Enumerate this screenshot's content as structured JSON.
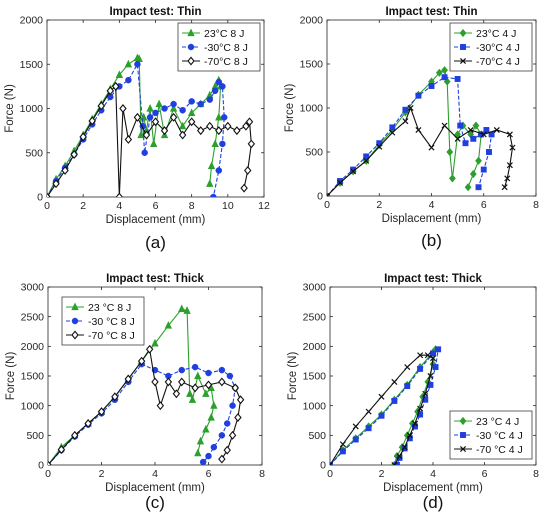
{
  "chart_data": [
    {
      "type": "line",
      "panel_label": "(a)",
      "title": "Impact test: Thin",
      "xlabel": "Displacement (mm)",
      "ylabel": "Force (N)",
      "xlim": [
        0,
        12
      ],
      "ylim": [
        0,
        2000
      ],
      "xticks": [
        0,
        2,
        4,
        6,
        8,
        10,
        12
      ],
      "yticks": [
        0,
        500,
        1000,
        1500,
        2000
      ],
      "legend_position": "top-right",
      "series": [
        {
          "name": "23°C 8 J",
          "color": "#2ca02c",
          "marker": "triangle",
          "dash": "solid",
          "x": [
            0,
            0.5,
            1,
            1.5,
            2,
            2.5,
            3,
            3.5,
            4,
            4.5,
            5,
            5.1,
            5.2,
            5.35,
            5.5,
            5.7,
            5.9,
            6.2,
            6.5,
            7,
            7.5,
            8,
            8.5,
            9,
            9.3,
            9.5,
            9.6,
            9.5,
            9.3,
            9.1,
            9.0
          ],
          "y": [
            0,
            200,
            350,
            520,
            700,
            880,
            1050,
            1220,
            1380,
            1500,
            1570,
            1560,
            700,
            900,
            750,
            1000,
            600,
            1050,
            700,
            1000,
            800,
            950,
            1050,
            1150,
            1250,
            1320,
            1250,
            900,
            600,
            350,
            150
          ]
        },
        {
          "name": "-30°C 8 J",
          "color": "#1f3fe0",
          "marker": "circle",
          "dash": "dashed",
          "x": [
            0,
            0.5,
            1,
            1.5,
            2,
            2.5,
            3,
            3.5,
            4,
            4.5,
            5.0,
            5.3,
            5.4,
            5.7,
            6,
            6.5,
            7,
            7.5,
            8,
            8.5,
            9,
            9.3,
            9.5,
            9.7,
            9.8,
            9.7,
            9.5,
            9.2
          ],
          "y": [
            0,
            180,
            330,
            480,
            650,
            820,
            980,
            1130,
            1250,
            1320,
            1500,
            800,
            500,
            900,
            950,
            1000,
            1050,
            980,
            1080,
            1050,
            1100,
            1200,
            1300,
            1250,
            900,
            600,
            300,
            0
          ]
        },
        {
          "name": "-70°C 8 J",
          "color": "#111111",
          "marker": "diamond",
          "dash": "solid",
          "x": [
            0,
            0.5,
            1,
            1.5,
            2,
            2.5,
            3,
            3.5,
            3.8,
            4.0,
            4.2,
            4.5,
            5,
            5.5,
            6,
            6.5,
            7,
            7.5,
            8,
            8.5,
            9,
            9.5,
            10,
            10.5,
            11,
            11.2,
            11.3,
            11.1,
            10.9
          ],
          "y": [
            0,
            150,
            300,
            480,
            680,
            860,
            1030,
            1200,
            1250,
            0,
            1000,
            650,
            900,
            700,
            850,
            750,
            900,
            700,
            850,
            750,
            800,
            750,
            800,
            750,
            800,
            850,
            600,
            300,
            100
          ]
        }
      ]
    },
    {
      "type": "line",
      "panel_label": "(b)",
      "title": "Impact test: Thin",
      "xlabel": "Displacement (mm)",
      "ylabel": "Force (N)",
      "xlim": [
        0,
        8
      ],
      "ylim": [
        0,
        2000
      ],
      "xticks": [
        0,
        2,
        4,
        6,
        8
      ],
      "yticks": [
        0,
        500,
        1000,
        1500,
        2000
      ],
      "legend_position": "top-right",
      "series": [
        {
          "name": "23°C 4 J",
          "color": "#2ca02c",
          "marker": "diamond-filled",
          "dash": "solid",
          "x": [
            0,
            0.5,
            1,
            1.5,
            2,
            2.5,
            3,
            3.5,
            4,
            4.3,
            4.5,
            4.6,
            4.7,
            4.8,
            5,
            5.2,
            5.5,
            5.7,
            5.9,
            5.8,
            5.6,
            5.4
          ],
          "y": [
            0,
            150,
            280,
            400,
            580,
            750,
            950,
            1150,
            1300,
            1400,
            1430,
            1300,
            500,
            200,
            700,
            800,
            700,
            800,
            700,
            400,
            250,
            100
          ]
        },
        {
          "name": "-30°C 4 J",
          "color": "#1f3fe0",
          "marker": "square",
          "dash": "dashed",
          "x": [
            0,
            0.5,
            1,
            1.5,
            2,
            2.5,
            3,
            3.5,
            4,
            4.5,
            5,
            5.1,
            5.3,
            5.6,
            5.9,
            6.1,
            6.3,
            6.2,
            6.0,
            5.8
          ],
          "y": [
            0,
            170,
            300,
            450,
            600,
            780,
            980,
            1140,
            1250,
            1350,
            1330,
            800,
            600,
            650,
            700,
            750,
            700,
            500,
            300,
            100
          ]
        },
        {
          "name": "-70°C 4 J",
          "color": "#111111",
          "marker": "x",
          "dash": "solid",
          "x": [
            0,
            0.5,
            1,
            1.5,
            2,
            2.5,
            3,
            3.2,
            3.5,
            4,
            4.5,
            5,
            5.5,
            6,
            6.5,
            7.0,
            7.1,
            7.0,
            6.9,
            6.8
          ],
          "y": [
            0,
            150,
            280,
            400,
            560,
            720,
            850,
            1000,
            750,
            550,
            800,
            650,
            750,
            700,
            750,
            700,
            550,
            350,
            200,
            100
          ]
        }
      ]
    },
    {
      "type": "line",
      "panel_label": "(c)",
      "title": "Impact test: Thick",
      "xlabel": "Displacement (mm)",
      "ylabel": "Force (N)",
      "xlim": [
        0,
        8
      ],
      "ylim": [
        0,
        3000
      ],
      "xticks": [
        0,
        2,
        4,
        6,
        8
      ],
      "yticks": [
        0,
        500,
        1000,
        1500,
        2000,
        2500,
        3000
      ],
      "legend_position": "top-left",
      "series": [
        {
          "name": "23 °C 8 J",
          "color": "#2ca02c",
          "marker": "triangle",
          "dash": "solid",
          "x": [
            0,
            0.5,
            1,
            1.5,
            2,
            2.5,
            3,
            3.5,
            4,
            4.5,
            5,
            5.2,
            5.3,
            5.4,
            5.6,
            5.9,
            6.1,
            6.2,
            6.1,
            5.9,
            5.7,
            5.6
          ],
          "y": [
            0,
            300,
            500,
            700,
            900,
            1150,
            1450,
            1750,
            2050,
            2350,
            2630,
            2600,
            1200,
            1100,
            1500,
            1200,
            1300,
            1000,
            800,
            600,
            400,
            200
          ]
        },
        {
          "name": "-30 °C 8 J",
          "color": "#1f3fe0",
          "marker": "circle",
          "dash": "dashed",
          "x": [
            0,
            0.5,
            1,
            1.5,
            2,
            2.5,
            3,
            3.5,
            4,
            4.5,
            5,
            5.5,
            6,
            6.5,
            6.8,
            7.0,
            6.9,
            6.7,
            6.5,
            6.2,
            6.0,
            5.8
          ],
          "y": [
            0,
            250,
            480,
            680,
            870,
            1100,
            1400,
            1700,
            1600,
            1500,
            1600,
            1650,
            1550,
            1600,
            1500,
            1300,
            1000,
            700,
            500,
            300,
            150,
            50
          ]
        },
        {
          "name": "-70 °C 8 J",
          "color": "#111111",
          "marker": "diamond",
          "dash": "solid",
          "x": [
            0,
            0.5,
            1,
            1.5,
            2,
            2.5,
            3,
            3.5,
            3.8,
            4.0,
            4.2,
            4.5,
            4.8,
            5,
            5.5,
            6,
            6.5,
            7.0,
            7.2,
            7.1,
            6.9,
            6.7,
            6.5
          ],
          "y": [
            0,
            260,
            500,
            700,
            900,
            1150,
            1450,
            1750,
            1950,
            1400,
            1000,
            1400,
            1200,
            1400,
            1300,
            1350,
            1400,
            1300,
            1100,
            800,
            500,
            250,
            100
          ]
        }
      ]
    },
    {
      "type": "line",
      "panel_label": "(d)",
      "title": "Impact test: Thick",
      "xlabel": "Displacement (mm)",
      "ylabel": "Force (N)",
      "xlim": [
        0,
        8
      ],
      "ylim": [
        0,
        3000
      ],
      "xticks": [
        0,
        2,
        4,
        6,
        8
      ],
      "yticks": [
        0,
        500,
        1000,
        1500,
        2000,
        2500,
        3000
      ],
      "legend_position": "bottom-right",
      "series": [
        {
          "name": "23 °C 4 J",
          "color": "#2ca02c",
          "marker": "diamond-filled",
          "dash": "solid",
          "x": [
            0,
            0.5,
            1,
            1.5,
            2,
            2.5,
            3,
            3.5,
            4,
            4.1,
            4.0,
            3.8,
            3.6,
            3.4,
            3.2,
            3.0,
            2.8,
            2.6,
            2.5
          ],
          "y": [
            0,
            250,
            450,
            650,
            850,
            1100,
            1350,
            1650,
            1900,
            1950,
            1700,
            1400,
            1150,
            900,
            700,
            500,
            300,
            150,
            0
          ]
        },
        {
          "name": "-30 °C 4 J",
          "color": "#1f3fe0",
          "marker": "square",
          "dash": "dashed",
          "x": [
            0,
            0.5,
            1,
            1.5,
            2,
            2.5,
            3,
            3.5,
            4,
            4.2,
            4.1,
            3.9,
            3.7,
            3.5,
            3.3,
            3.1,
            2.9,
            2.7,
            2.6
          ],
          "y": [
            0,
            230,
            430,
            620,
            830,
            1080,
            1330,
            1620,
            1880,
            1950,
            1650,
            1350,
            1100,
            850,
            650,
            450,
            280,
            120,
            0
          ]
        },
        {
          "name": "-70 °C 4 J",
          "color": "#111111",
          "marker": "x",
          "dash": "solid",
          "x": [
            0,
            0.5,
            1,
            1.5,
            2,
            2.5,
            3,
            3.5,
            3.8,
            4.0,
            3.9,
            3.7,
            3.5,
            3.3,
            3.1,
            2.9,
            2.7,
            2.5
          ],
          "y": [
            0,
            350,
            650,
            900,
            1150,
            1400,
            1650,
            1850,
            1850,
            1800,
            1500,
            1200,
            950,
            700,
            500,
            300,
            150,
            0
          ]
        }
      ]
    }
  ]
}
